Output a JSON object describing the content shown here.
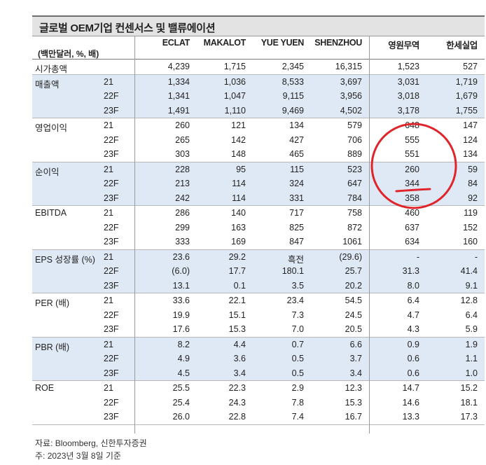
{
  "title": "글로벌 OEM기업 컨센서스 및 밸류에이션",
  "unit_label": "(백만달러, %, 배)",
  "columns": [
    "ECLAT",
    "MAKALOT",
    "YUE YUEN",
    "SHENZHOU",
    "영원무역",
    "한세실업"
  ],
  "groups": [
    {
      "label": "시가총액",
      "shaded": false,
      "rows": [
        {
          "year": "",
          "values": [
            "4,239",
            "1,715",
            "2,345",
            "16,315",
            "1,523",
            "527"
          ]
        }
      ]
    },
    {
      "label": "매출액",
      "shaded": true,
      "rows": [
        {
          "year": "21",
          "values": [
            "1,334",
            "1,036",
            "8,533",
            "3,697",
            "3,031",
            "1,719"
          ]
        },
        {
          "year": "22F",
          "values": [
            "1,341",
            "1,047",
            "9,115",
            "3,956",
            "3,018",
            "1,679"
          ]
        },
        {
          "year": "23F",
          "values": [
            "1,491",
            "1,110",
            "9,469",
            "4,502",
            "3,178",
            "1,755"
          ]
        }
      ]
    },
    {
      "label": "영업이익",
      "shaded": false,
      "rows": [
        {
          "year": "21",
          "values": [
            "260",
            "121",
            "134",
            "579",
            "648",
            "147"
          ]
        },
        {
          "year": "22F",
          "values": [
            "265",
            "142",
            "427",
            "706",
            "555",
            "124"
          ]
        },
        {
          "year": "23F",
          "values": [
            "303",
            "148",
            "465",
            "889",
            "551",
            "134"
          ]
        }
      ]
    },
    {
      "label": "순이익",
      "shaded": true,
      "rows": [
        {
          "year": "21",
          "values": [
            "228",
            "95",
            "115",
            "523",
            "260",
            "59"
          ]
        },
        {
          "year": "22F",
          "values": [
            "213",
            "114",
            "324",
            "647",
            "344",
            "84"
          ]
        },
        {
          "year": "23F",
          "values": [
            "242",
            "114",
            "331",
            "784",
            "358",
            "92"
          ]
        }
      ]
    },
    {
      "label": "EBITDA",
      "shaded": false,
      "rows": [
        {
          "year": "21",
          "values": [
            "286",
            "140",
            "717",
            "758",
            "460",
            "119"
          ]
        },
        {
          "year": "22F",
          "values": [
            "299",
            "163",
            "825",
            "872",
            "637",
            "152"
          ]
        },
        {
          "year": "23F",
          "values": [
            "333",
            "169",
            "847",
            "1061",
            "634",
            "160"
          ]
        }
      ]
    },
    {
      "label": "EPS 성장률 (%)",
      "shaded": true,
      "rows": [
        {
          "year": "21",
          "values": [
            "23.6",
            "29.2",
            "흑전",
            "(29.6)",
            "-",
            "-"
          ]
        },
        {
          "year": "22F",
          "values": [
            "(6.0)",
            "17.7",
            "180.1",
            "25.7",
            "31.3",
            "41.4"
          ]
        },
        {
          "year": "23F",
          "values": [
            "13.1",
            "0.1",
            "3.5",
            "20.2",
            "8.0",
            "9.1"
          ]
        }
      ]
    },
    {
      "label": "PER (배)",
      "shaded": false,
      "rows": [
        {
          "year": "21",
          "values": [
            "33.6",
            "22.1",
            "23.4",
            "54.5",
            "6.4",
            "12.8"
          ]
        },
        {
          "year": "22F",
          "values": [
            "19.9",
            "15.1",
            "7.3",
            "24.5",
            "4.7",
            "6.4"
          ]
        },
        {
          "year": "23F",
          "values": [
            "17.6",
            "15.3",
            "7.0",
            "20.5",
            "4.3",
            "5.9"
          ]
        }
      ]
    },
    {
      "label": "PBR (배)",
      "shaded": true,
      "rows": [
        {
          "year": "21",
          "values": [
            "8.2",
            "4.4",
            "0.7",
            "6.6",
            "0.9",
            "1.9"
          ]
        },
        {
          "year": "22F",
          "values": [
            "4.9",
            "3.6",
            "0.5",
            "3.7",
            "0.6",
            "1.1"
          ]
        },
        {
          "year": "23F",
          "values": [
            "4.5",
            "3.4",
            "0.5",
            "3.4",
            "0.6",
            "1.0"
          ]
        }
      ]
    },
    {
      "label": "ROE",
      "shaded": false,
      "rows": [
        {
          "year": "21",
          "values": [
            "25.5",
            "22.3",
            "2.9",
            "12.3",
            "14.7",
            "15.2"
          ]
        },
        {
          "year": "22F",
          "values": [
            "25.4",
            "24.3",
            "7.8",
            "15.3",
            "14.6",
            "18.1"
          ]
        },
        {
          "year": "23F",
          "values": [
            "26.0",
            "22.8",
            "7.4",
            "16.7",
            "13.3",
            "17.3"
          ]
        }
      ]
    }
  ],
  "source_note": "자료: Bloomberg, 신한투자증권",
  "date_note": "주: 2023년 3월 8일 기준",
  "annotation_color": "#e0242b"
}
